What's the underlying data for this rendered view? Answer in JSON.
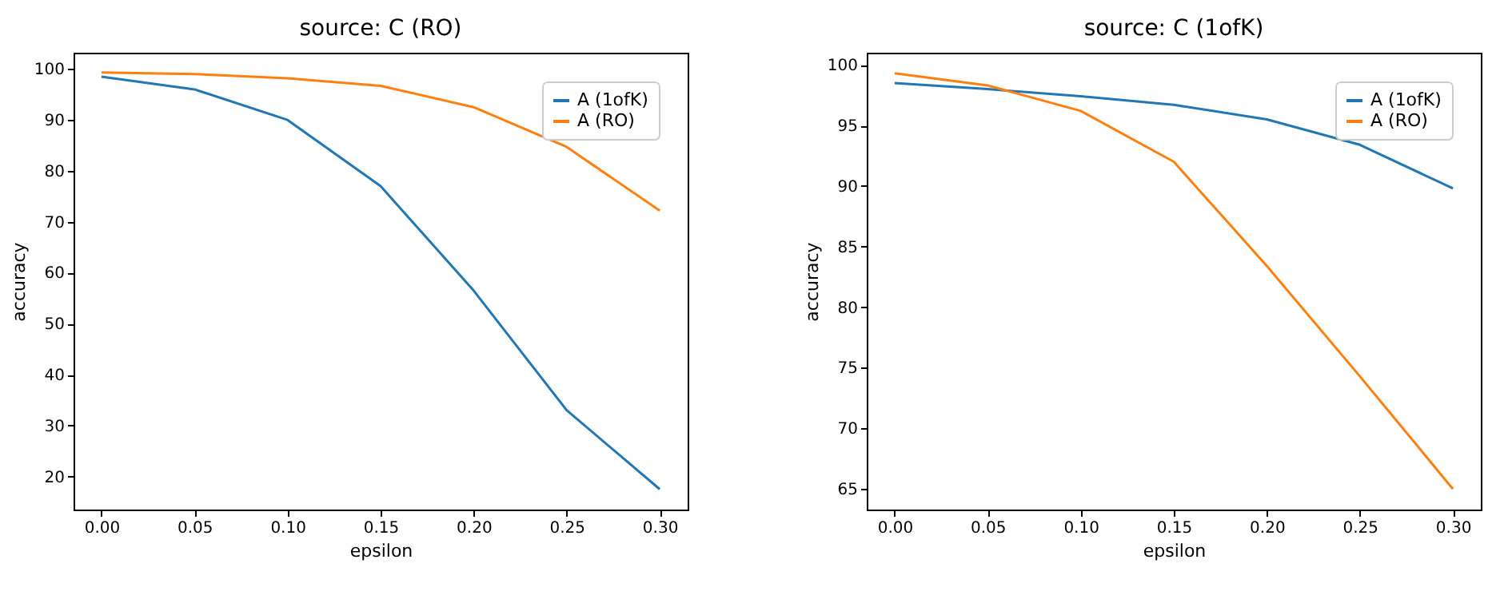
{
  "chart_data": [
    {
      "type": "line",
      "title": "source: C (RO)",
      "xlabel": "epsilon",
      "ylabel": "accuracy",
      "x": [
        0,
        0.05,
        0.1,
        0.15,
        0.2,
        0.25,
        0.3
      ],
      "series": [
        {
          "name": "A (1ofK)",
          "color": "#1f77b4",
          "values": [
            98.5,
            96,
            90,
            77,
            56.5,
            33,
            17.5
          ]
        },
        {
          "name": "A (RO)",
          "color": "#ff7f0e",
          "values": [
            99.3,
            99,
            98.2,
            96.7,
            92.5,
            84.7,
            72.2
          ]
        }
      ],
      "xlim": [
        -0.015,
        0.315
      ],
      "ylim": [
        13.5,
        103.2
      ],
      "xticks": [
        {
          "value": 0,
          "label": "0.00"
        },
        {
          "value": 0.05,
          "label": "0.05"
        },
        {
          "value": 0.1,
          "label": "0.10"
        },
        {
          "value": 0.15,
          "label": "0.15"
        },
        {
          "value": 0.2,
          "label": "0.20"
        },
        {
          "value": 0.25,
          "label": "0.25"
        },
        {
          "value": 0.3,
          "label": "0.30"
        }
      ],
      "yticks": [
        20,
        30,
        40,
        50,
        60,
        70,
        80,
        90,
        100
      ],
      "grid": false,
      "legend": "top right"
    },
    {
      "type": "line",
      "title": "source: C (1ofK)",
      "xlabel": "epsilon",
      "ylabel": "accuracy",
      "x": [
        0,
        0.05,
        0.1,
        0.15,
        0.2,
        0.25,
        0.3
      ],
      "series": [
        {
          "name": "A (1ofK)",
          "color": "#1f77b4",
          "values": [
            98.5,
            98.0,
            97.4,
            96.7,
            95.5,
            93.4,
            89.8
          ]
        },
        {
          "name": "A (RO)",
          "color": "#ff7f0e",
          "values": [
            99.3,
            98.3,
            96.2,
            92.0,
            83.4,
            74.3,
            65.0
          ]
        }
      ],
      "xlim": [
        -0.015,
        0.315
      ],
      "ylim": [
        63.3,
        101
      ],
      "xticks": [
        {
          "value": 0,
          "label": "0.00"
        },
        {
          "value": 0.05,
          "label": "0.05"
        },
        {
          "value": 0.1,
          "label": "0.10"
        },
        {
          "value": 0.15,
          "label": "0.15"
        },
        {
          "value": 0.2,
          "label": "0.20"
        },
        {
          "value": 0.25,
          "label": "0.25"
        },
        {
          "value": 0.3,
          "label": "0.30"
        }
      ],
      "yticks": [
        65,
        70,
        75,
        80,
        85,
        90,
        95,
        100
      ],
      "grid": false,
      "legend": "top right"
    }
  ]
}
